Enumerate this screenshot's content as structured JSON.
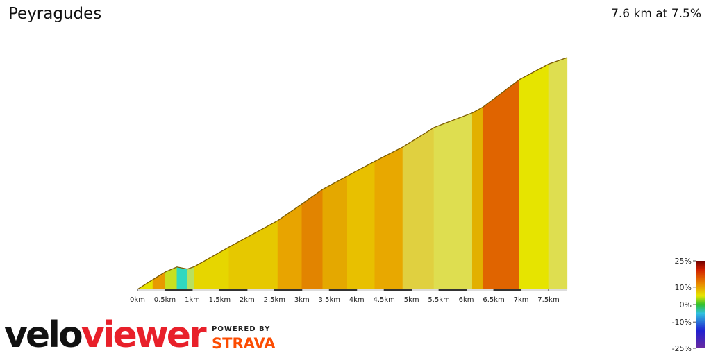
{
  "chart_data": {
    "type": "area",
    "title": "Peyragudes",
    "subtitle": "7.6 km at 7.5%",
    "x": [
      0,
      0.28,
      0.51,
      0.72,
      0.91,
      1.04,
      1.67,
      2.56,
      3.0,
      3.38,
      3.83,
      4.33,
      4.84,
      5.41,
      6.11,
      6.3,
      6.97,
      7.5,
      7.84
    ],
    "series": [
      {
        "values": [
          0,
          24,
          43,
          55,
          50,
          56,
          104,
          169,
          210,
          246,
          279,
          315,
          350,
          398,
          434,
          448,
          516,
          554,
          570
        ],
        "segment_colors": [
          "#e6e200",
          "#e89a00",
          "#c8e020",
          "#30d8c0",
          "#b8e060",
          "#e6d600",
          "#e6c800",
          "#e8a400",
          "#e28400",
          "#e4a800",
          "#e8c000",
          "#e8a800",
          "#e0d040",
          "#dede50",
          "#e2b000",
          "#e06400",
          "#e6e400",
          "#dede50"
        ]
      }
    ],
    "xlim": [
      0,
      7.5
    ],
    "ylim": [
      0,
      570
    ],
    "xticks": [
      {
        "value": 0,
        "label": "0km"
      },
      {
        "value": 0.5,
        "label": "0.5km"
      },
      {
        "value": 1,
        "label": "1km"
      },
      {
        "value": 1.5,
        "label": "1.5km"
      },
      {
        "value": 2,
        "label": "2km"
      },
      {
        "value": 2.5,
        "label": "2.5km"
      },
      {
        "value": 3,
        "label": "3km"
      },
      {
        "value": 3.5,
        "label": "3.5km"
      },
      {
        "value": 4,
        "label": "4km"
      },
      {
        "value": 4.5,
        "label": "4.5km"
      },
      {
        "value": 5,
        "label": "5km"
      },
      {
        "value": 5.5,
        "label": "5.5km"
      },
      {
        "value": 6,
        "label": "6km"
      },
      {
        "value": 6.5,
        "label": "6.5km"
      },
      {
        "value": 7,
        "label": "7km"
      },
      {
        "value": 7.5,
        "label": "7.5km"
      }
    ],
    "colorbar": {
      "lim": [
        -25,
        25
      ],
      "ticks": [
        {
          "value": 25,
          "label": "25%"
        },
        {
          "value": 10,
          "label": "10%"
        },
        {
          "value": 0,
          "label": "0%"
        },
        {
          "value": -10,
          "label": "-10%"
        },
        {
          "value": -25,
          "label": "-25%"
        }
      ]
    }
  },
  "logo": {
    "part1": "velo",
    "part2": "viewer",
    "powered": "POWERED BY",
    "strava": "STRAVA"
  }
}
